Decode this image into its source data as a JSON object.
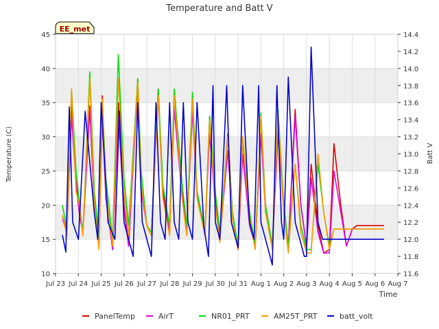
{
  "chart_data": {
    "type": "line",
    "title": "Temperature and Batt V",
    "site_label": "EE_met",
    "xlabel": "Time",
    "ylabel": "Temperature (C)",
    "y2label": "Batt V",
    "x_ticks": [
      "Jul 23",
      "Jul 24",
      "Jul 25",
      "Jul 26",
      "Jul 27",
      "Jul 28",
      "Jul 29",
      "Jul 30",
      "Jul 31",
      "Aug 1",
      "Aug 2",
      "Aug 3",
      "Aug 4",
      "Aug 5",
      "Aug 6",
      "Aug 7"
    ],
    "xlim_days": [
      0,
      15
    ],
    "ylim": [
      10,
      45
    ],
    "y_ticks": [
      10,
      15,
      20,
      25,
      30,
      35,
      40,
      45
    ],
    "y2lim": [
      11.6,
      14.4
    ],
    "y2_ticks": [
      11.6,
      11.8,
      12.0,
      12.2,
      12.4,
      12.6,
      12.8,
      13.0,
      13.2,
      13.4,
      13.6,
      13.8,
      14.0,
      14.2,
      14.4
    ],
    "legend_position": "bottom",
    "x_unit": "days since Jul 23",
    "series": [
      {
        "name": "PanelTemp",
        "color": "#dd0000",
        "axis": "left",
        "x": [
          0.3,
          0.5,
          0.7,
          0.9,
          1.05,
          1.2,
          1.5,
          1.7,
          1.9,
          2.05,
          2.2,
          2.5,
          2.75,
          3.0,
          3.2,
          3.6,
          3.75,
          4.0,
          4.2,
          4.5,
          4.7,
          5.0,
          5.2,
          5.55,
          5.75,
          6.0,
          6.2,
          6.55,
          6.75,
          7.0,
          7.2,
          7.55,
          7.75,
          8.0,
          8.2,
          8.5,
          8.75,
          9.0,
          9.2,
          9.5,
          9.75,
          10.0,
          10.2,
          10.5,
          10.75,
          11.0,
          11.2,
          11.5,
          11.75,
          12.0,
          12.2,
          12.5,
          12.75,
          13.0,
          13.2,
          13.5,
          13.75,
          14.0,
          14.2,
          14.4
        ],
        "y": [
          18.5,
          16,
          35,
          24,
          19,
          16,
          34.5,
          20,
          14,
          36,
          22,
          13.5,
          35,
          20,
          14,
          38.5,
          23,
          17,
          16,
          37,
          22,
          16,
          36,
          22,
          16,
          34,
          22,
          16,
          33,
          21,
          15,
          30.5,
          19,
          13.5,
          29.5,
          18,
          14,
          30.5,
          20,
          14,
          30.5,
          20,
          14,
          34,
          20,
          14,
          26,
          17,
          13,
          13.5,
          29,
          20,
          14,
          16.5,
          17,
          17,
          17,
          17,
          17,
          17
        ]
      },
      {
        "name": "AirT",
        "color": "#dd00dd",
        "axis": "left",
        "x": [
          0.3,
          0.5,
          0.7,
          0.9,
          1.05,
          1.2,
          1.5,
          1.7,
          1.9,
          2.05,
          2.2,
          2.5,
          2.75,
          3.0,
          3.2,
          3.6,
          3.75,
          4.0,
          4.2,
          4.5,
          4.7,
          5.0,
          5.2,
          5.55,
          5.75,
          6.0,
          6.2,
          6.55,
          6.75,
          7.0,
          7.2,
          7.55,
          7.75,
          8.0,
          8.2,
          8.5,
          8.75,
          9.0,
          9.2,
          9.5,
          9.75,
          10.0,
          10.2,
          10.5,
          10.75,
          11.0,
          11.2,
          11.5,
          11.75,
          12.0,
          12.2,
          12.5,
          12.75,
          13.0,
          13.2,
          13.5,
          13.75,
          14.0,
          14.2,
          14.4
        ],
        "y": [
          18,
          16,
          33,
          23,
          18.5,
          16,
          34,
          19.5,
          14,
          33,
          21,
          13.5,
          33,
          19.5,
          14,
          37.5,
          22,
          17,
          16,
          36,
          21,
          16,
          34,
          21,
          16,
          34,
          21,
          16,
          30.5,
          20,
          15,
          28,
          18,
          13.5,
          27.5,
          17,
          14,
          30.5,
          19,
          14,
          31.5,
          19,
          14,
          33,
          20,
          14,
          24,
          16,
          13,
          13,
          25,
          19,
          14,
          16.5,
          16.5,
          16.5,
          16.5,
          16.5,
          16.5,
          16.5
        ]
      },
      {
        "name": "NR01_PRT",
        "color": "#00dd00",
        "axis": "left",
        "x": [
          0.3,
          0.5,
          0.7,
          0.9,
          1.05,
          1.2,
          1.5,
          1.7,
          1.9,
          2.05,
          2.2,
          2.5,
          2.75,
          3.0,
          3.2,
          3.6,
          3.75,
          4.0,
          4.2,
          4.5,
          4.7,
          5.0,
          5.2,
          5.55,
          5.75,
          6.0,
          6.2,
          6.55,
          6.75,
          7.0,
          7.2,
          7.55,
          7.75,
          8.0,
          8.2,
          8.5,
          8.75,
          9.0,
          9.2,
          9.5,
          9.75,
          10.0,
          10.2,
          10.5,
          10.75,
          11.0,
          11.2,
          11.5,
          11.75,
          12.0,
          12.2,
          12.5,
          12.75,
          13.0,
          13.2,
          13.5,
          13.75,
          14.0,
          14.2,
          14.4
        ],
        "y": [
          20,
          16.5,
          37,
          25,
          20,
          16,
          39.5,
          22,
          15,
          35.5,
          24,
          15,
          42,
          24,
          17,
          38.5,
          25,
          17,
          16,
          37,
          23,
          17,
          37,
          23,
          17,
          36.5,
          22,
          16,
          33,
          22,
          16,
          30,
          19,
          14,
          30,
          19,
          14,
          33.5,
          20,
          14,
          34,
          20,
          14,
          26,
          17,
          13.5,
          13.5,
          26,
          19,
          14,
          16.5,
          16.5,
          16.5,
          16.5,
          16.5,
          16.5,
          16.5,
          16.5,
          16.5,
          16.5
        ]
      },
      {
        "name": "AM25T_PRT",
        "color": "#ff9900",
        "axis": "left",
        "x": [
          0.3,
          0.5,
          0.7,
          0.9,
          1.05,
          1.2,
          1.5,
          1.7,
          1.9,
          2.05,
          2.2,
          2.5,
          2.75,
          3.0,
          3.2,
          3.6,
          3.75,
          4.0,
          4.2,
          4.5,
          4.7,
          5.0,
          5.2,
          5.55,
          5.75,
          6.0,
          6.2,
          6.55,
          6.75,
          7.0,
          7.2,
          7.55,
          7.75,
          8.0,
          8.2,
          8.5,
          8.75,
          9.0,
          9.2,
          9.5,
          9.75,
          10.0,
          10.2,
          10.5,
          10.75,
          11.0,
          11.2,
          11.5,
          11.75,
          12.0,
          12.2,
          12.5,
          12.75,
          13.0,
          13.2,
          13.5,
          13.75,
          14.0,
          14.2,
          14.4
        ],
        "y": [
          18.5,
          15.5,
          37,
          22,
          20,
          15.5,
          38.5,
          20,
          13.5,
          35.5,
          22,
          14,
          38.5,
          22,
          15.5,
          38,
          23,
          17,
          15.5,
          36,
          21,
          15.5,
          36,
          21,
          15.5,
          35.5,
          21,
          15.5,
          32.5,
          20,
          14.5,
          30,
          18,
          13.5,
          30,
          18,
          13.5,
          33,
          19,
          13.5,
          33.5,
          19,
          13,
          26,
          16,
          13,
          13,
          27.5,
          19,
          13.5,
          16.5,
          16.5,
          16.5,
          16.5,
          16.5,
          16.5,
          16.5,
          16.5,
          16.5,
          16.5
        ]
      },
      {
        "name": "batt_volt",
        "color": "#0000cc",
        "axis": "right",
        "x": [
          0.3,
          0.45,
          0.6,
          0.75,
          1.0,
          1.3,
          1.7,
          1.85,
          2.0,
          2.3,
          2.6,
          2.8,
          3.0,
          3.2,
          3.4,
          3.6,
          3.8,
          4.0,
          4.2,
          4.4,
          4.6,
          4.8,
          5.0,
          5.2,
          5.4,
          5.6,
          5.8,
          6.0,
          6.2,
          6.5,
          6.7,
          6.9,
          7.0,
          7.2,
          7.5,
          7.7,
          7.9,
          8.0,
          8.2,
          8.5,
          8.7,
          8.9,
          9.0,
          9.2,
          9.5,
          9.7,
          9.9,
          10.0,
          10.2,
          10.5,
          10.7,
          10.9,
          11.0,
          11.2,
          11.5,
          11.7,
          11.9,
          12.0,
          12.2,
          12.5,
          12.7,
          12.9,
          13.0,
          13.2,
          13.5,
          13.7,
          13.9,
          14.0,
          14.2,
          14.4
        ],
        "y": [
          12.05,
          11.85,
          13.55,
          12.2,
          12.0,
          13.5,
          12.3,
          12.0,
          13.6,
          12.2,
          12.0,
          13.5,
          12.2,
          12.0,
          11.8,
          13.6,
          12.2,
          12.0,
          11.8,
          13.6,
          12.2,
          12.0,
          13.6,
          12.2,
          12.0,
          13.6,
          12.2,
          12.0,
          13.6,
          12.15,
          11.8,
          13.8,
          12.2,
          12.0,
          13.8,
          12.2,
          12.0,
          11.9,
          13.8,
          12.2,
          12.0,
          13.8,
          12.2,
          12.0,
          11.7,
          13.8,
          12.2,
          12.0,
          13.9,
          12.2,
          12.0,
          11.8,
          11.8,
          14.25,
          12.2,
          12.0,
          12.0,
          12.0,
          12.0,
          12.0,
          12.0,
          12.0,
          12.0,
          12.0,
          12.0,
          12.0,
          12.0,
          12.0,
          12.0,
          12.0
        ]
      }
    ]
  }
}
